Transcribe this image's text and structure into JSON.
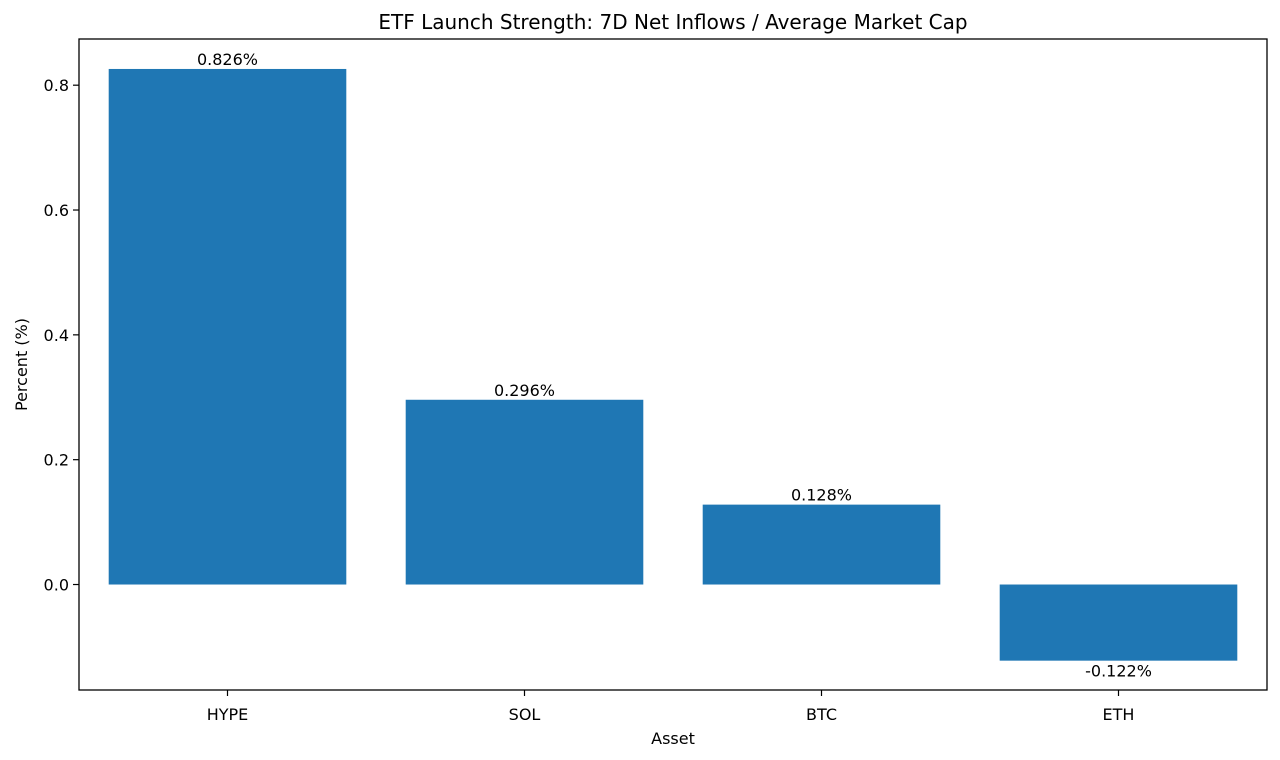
{
  "chart_data": {
    "type": "bar",
    "title": "ETF Launch Strength: 7D Net Inflows / Average Market Cap",
    "xlabel": "Asset",
    "ylabel": "Percent (%)",
    "categories": [
      "HYPE",
      "SOL",
      "BTC",
      "ETH"
    ],
    "values": [
      0.826,
      0.296,
      0.128,
      -0.122
    ],
    "data_labels": [
      "0.826%",
      "0.296%",
      "0.128%",
      "-0.122%"
    ],
    "ylim": [
      -0.169,
      0.874
    ],
    "yticks": [
      0.0,
      0.2,
      0.4,
      0.6,
      0.8
    ],
    "ytick_labels": [
      "0.0",
      "0.2",
      "0.4",
      "0.6",
      "0.8"
    ],
    "grid": false,
    "legend": "none",
    "bar_color": "#1f77b4"
  }
}
